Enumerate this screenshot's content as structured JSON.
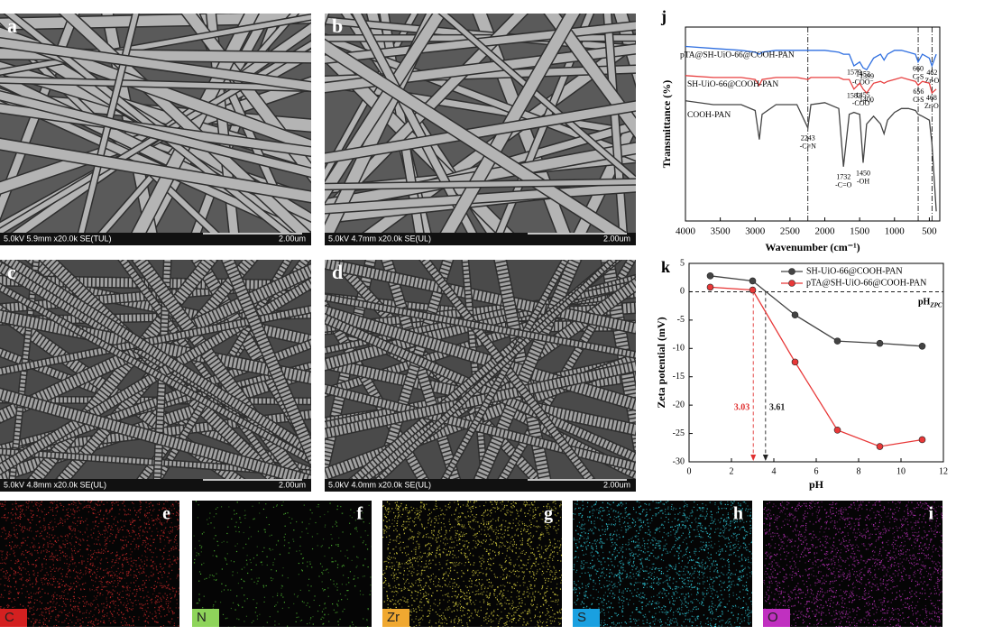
{
  "sem_images": [
    {
      "letter": "a",
      "caption": "5.0kV 5.9mm x20.0k SE(TUL)",
      "scale": "2.00um"
    },
    {
      "letter": "b",
      "caption": "5.0kV 4.7mm x20.0k SE(UL)",
      "scale": "2.00um"
    },
    {
      "letter": "c",
      "caption": "5.0kV 4.8mm x20.0k SE(UL)",
      "scale": "2.00um"
    },
    {
      "letter": "d",
      "caption": "5.0kV 4.0mm x20.0k SE(UL)",
      "scale": "2.00um"
    }
  ],
  "eds_maps": [
    {
      "letter": "e",
      "element": "C",
      "color": "#c02828",
      "label_color": "#d42020"
    },
    {
      "letter": "f",
      "element": "N",
      "color": "#4caf30",
      "label_color": "#8ed45a"
    },
    {
      "letter": "g",
      "element": "Zr",
      "color": "#d8d040",
      "label_color": "#f0a830"
    },
    {
      "letter": "h",
      "element": "S",
      "color": "#30c8d8",
      "label_color": "#1aa0e0"
    },
    {
      "letter": "i",
      "element": "O",
      "color": "#b030b0",
      "label_color": "#c030c0"
    }
  ],
  "chart_data": [
    {
      "type": "spectrum",
      "panel": "j",
      "x_label": "Wavenumber (cm⁻¹)",
      "y_label": "Transmittance (%)",
      "xlim": [
        4000,
        350
      ],
      "xticks": [
        4000,
        3500,
        3000,
        2500,
        2000,
        1500,
        1000,
        500
      ],
      "ylim": [
        0,
        100
      ],
      "x": [
        4000,
        3600,
        3200,
        3000,
        2940,
        2900,
        2700,
        2400,
        2243,
        2200,
        2000,
        1800,
        1732,
        1650,
        1582,
        1500,
        1450,
        1400,
        1300,
        1200,
        1150,
        1100,
        1000,
        900,
        800,
        700,
        660,
        600,
        500,
        462,
        400
      ],
      "ref_lines": [
        2243,
        660,
        462
      ],
      "series": [
        {
          "name": "pTA@SH-UiO-66@COOH-PAN",
          "color": "#2f6fe0",
          "values": [
            90,
            89,
            88,
            87,
            86,
            87,
            88,
            88,
            88,
            88,
            88,
            87,
            86,
            86,
            80,
            82,
            79,
            78,
            84,
            86,
            83,
            86,
            88,
            88,
            87,
            86,
            82,
            86,
            84,
            80,
            86
          ],
          "peaks": [
            {
              "value": 1579
            },
            {
              "value": 1452,
              "note": "-COO⁻"
            },
            {
              "value": 1399
            },
            {
              "value": 660,
              "note": "C-S"
            },
            {
              "value": 462,
              "note": "Zr-O"
            }
          ]
        },
        {
          "name": "SH-UiO-66@COOH-PAN",
          "color": "#e84040",
          "values": [
            75,
            74,
            74,
            73,
            70,
            73,
            74,
            74,
            73,
            74,
            74,
            74,
            73,
            73,
            68,
            71,
            68,
            66,
            71,
            72,
            71,
            72,
            73,
            74,
            73,
            72,
            70,
            72,
            71,
            66,
            68
          ],
          "peaks": [
            {
              "value": 1582
            },
            {
              "value": 1455,
              "note": "-COO⁻"
            },
            {
              "value": 1400
            },
            {
              "value": 656,
              "note": "C-S"
            },
            {
              "value": 468,
              "note": "Zr-O"
            }
          ]
        },
        {
          "name": "COOH-PAN",
          "color": "#444444",
          "values": [
            62,
            60,
            60,
            57,
            42,
            55,
            60,
            60,
            48,
            60,
            61,
            58,
            28,
            55,
            56,
            55,
            30,
            50,
            54,
            50,
            45,
            52,
            56,
            58,
            58,
            57,
            55,
            54,
            52,
            40,
            5
          ],
          "peaks": [
            {
              "value": 2243,
              "note": "-C≡N"
            },
            {
              "value": 1732,
              "note": "-C=O"
            },
            {
              "value": 1450,
              "note": "-OH"
            }
          ]
        }
      ]
    },
    {
      "type": "line",
      "panel": "k",
      "x_label": "pH",
      "y_label": "Zeta potential (mV)",
      "xlim": [
        0,
        12
      ],
      "xticks": [
        0,
        2,
        4,
        6,
        8,
        10,
        12
      ],
      "ylim": [
        -30,
        5
      ],
      "yticks": [
        -30,
        -25,
        -20,
        -15,
        -10,
        -5,
        0,
        5
      ],
      "x": [
        1,
        3,
        5,
        7,
        9,
        11
      ],
      "hline": 0,
      "hline_label": {
        "text": "pH",
        "sub": "ZPC"
      },
      "series": [
        {
          "name": "SH-UiO-66@COOH-PAN",
          "color": "#444444",
          "values": [
            2.8,
            1.9,
            -4.1,
            -8.7,
            -9.1,
            -9.6
          ]
        },
        {
          "name": "pTA@SH-UiO-66@COOH-PAN",
          "color": "#e83838",
          "values": [
            0.8,
            0.3,
            -12.4,
            -24.4,
            -27.3,
            -26.1
          ]
        }
      ],
      "zpc": [
        {
          "value": 3.03,
          "color": "#e03030"
        },
        {
          "value": 3.61,
          "color": "#222222"
        }
      ]
    }
  ]
}
